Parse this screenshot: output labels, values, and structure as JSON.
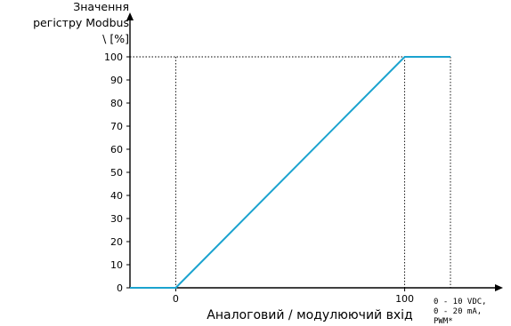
{
  "chart_data": {
    "type": "line",
    "title": "",
    "ylabel": [
      "Значення",
      "регістру Modbus",
      "\\ [%]"
    ],
    "xlabel": "Аналоговий / модулюючий вхід",
    "x_unit_note": [
      "0 - 10 VDC,",
      "0 - 20 mA,",
      "PWM*"
    ],
    "xlim": [
      -20,
      120
    ],
    "ylim": [
      0,
      100
    ],
    "x_ticks": [
      0,
      100
    ],
    "y_ticks": [
      0,
      10,
      20,
      30,
      40,
      50,
      60,
      70,
      80,
      90,
      100
    ],
    "guides": {
      "x": [
        0,
        100,
        120
      ],
      "y": [
        100
      ]
    },
    "grid": false,
    "series": [
      {
        "color": "#1ba3cf",
        "x": [
          -20,
          0,
          100,
          120
        ],
        "y": [
          0,
          0,
          100,
          100
        ]
      }
    ]
  }
}
